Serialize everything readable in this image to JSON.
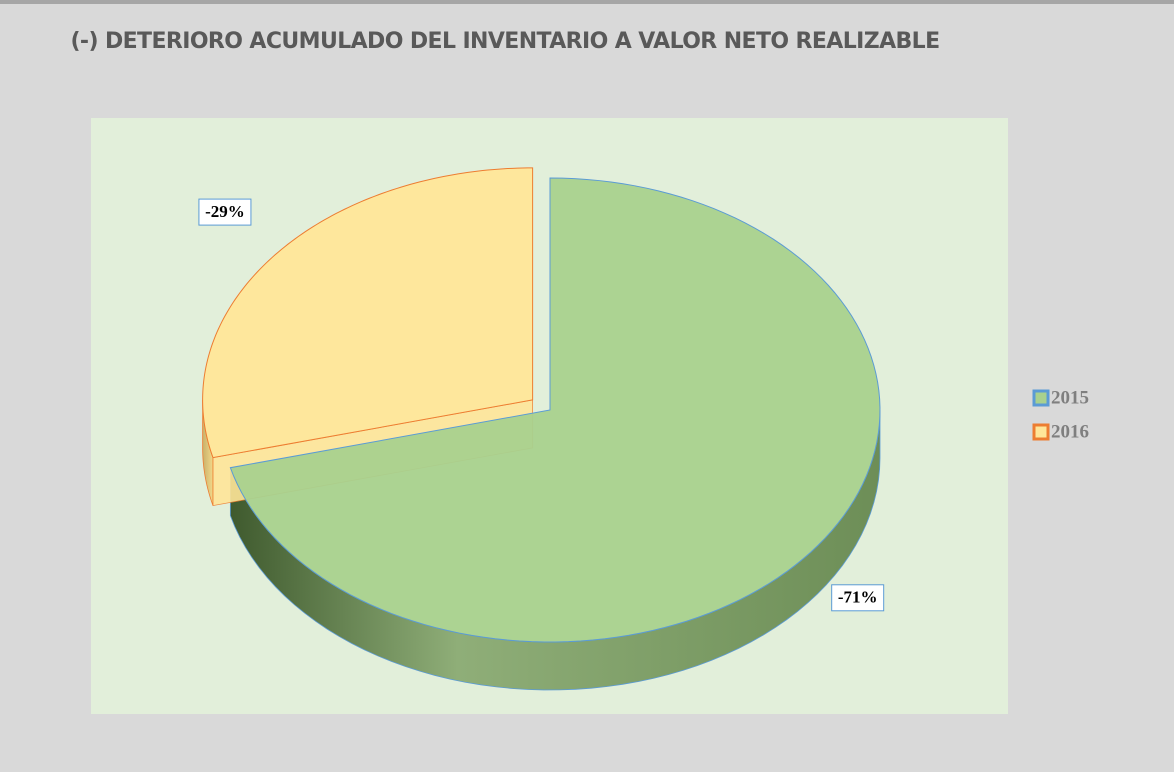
{
  "chart_data": {
    "type": "pie",
    "title": "(-) DETERIORO ACUMULADO DEL INVENTARIO A VALOR NETO REALIZABLE",
    "categories": [
      "2015",
      "2016"
    ],
    "values": [
      -71,
      -29
    ],
    "value_labels": [
      "-71%",
      "-29%"
    ],
    "colors": [
      "#a9d18e",
      "#ffe699"
    ],
    "edge_colors": [
      "#5b9bd5",
      "#ed7d31"
    ],
    "legend": "right"
  }
}
